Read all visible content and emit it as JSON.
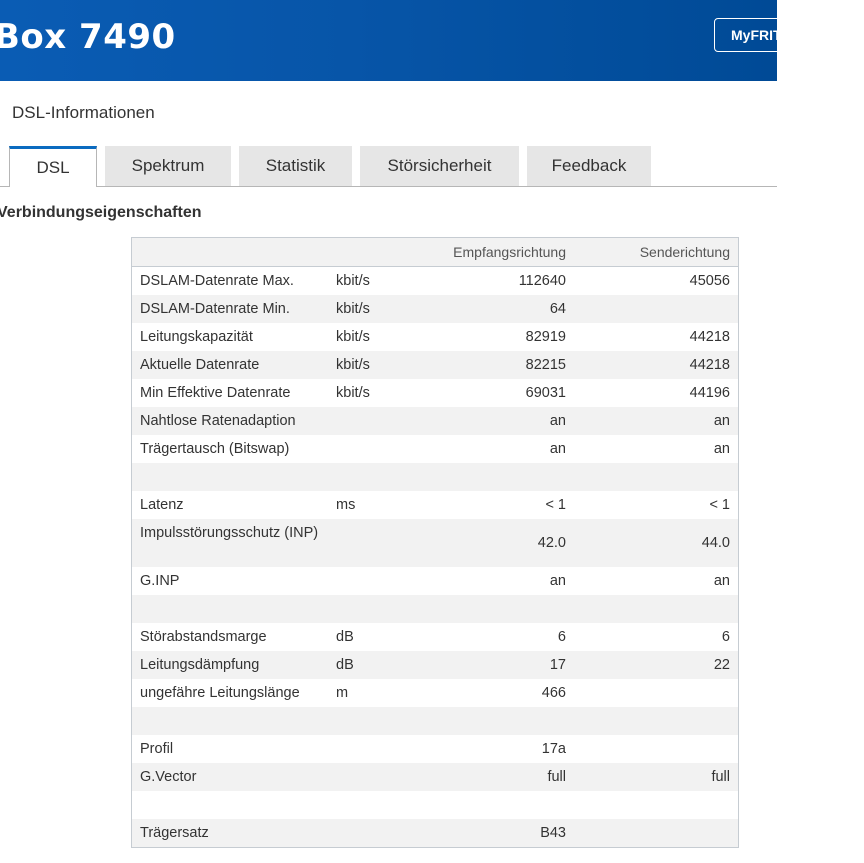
{
  "header": {
    "title": "Box 7490",
    "myfritz_label": "MyFRITZ!"
  },
  "breadcrumb": "DSL-Informationen",
  "tabs": [
    "DSL",
    "Spektrum",
    "Statistik",
    "Störsicherheit",
    "Feedback"
  ],
  "active_tab": "DSL",
  "section_title": "Verbindungseigenschaften",
  "table": {
    "headers": [
      "",
      "",
      "Empfangsrichtung",
      "Senderichtung"
    ],
    "rows": [
      [
        "DSLAM-Datenrate Max.",
        "kbit/s",
        "112640",
        "45056"
      ],
      [
        "DSLAM-Datenrate Min.",
        "kbit/s",
        "64",
        ""
      ],
      [
        "Leitungskapazität",
        "kbit/s",
        "82919",
        "44218"
      ],
      [
        "Aktuelle Datenrate",
        "kbit/s",
        "82215",
        "44218"
      ],
      [
        "Min Effektive Datenrate",
        "kbit/s",
        "69031",
        "44196"
      ],
      [
        "Nahtlose Ratenadaption",
        "",
        "an",
        "an"
      ],
      [
        "Trägertausch (Bitswap)",
        "",
        "an",
        "an"
      ],
      [
        "",
        "",
        "",
        ""
      ],
      [
        "Latenz",
        "ms",
        "< 1",
        "< 1"
      ],
      [
        "Impulsstörungsschutz (INP)",
        "",
        "42.0",
        "44.0"
      ],
      [
        "G.INP",
        "",
        "an",
        "an"
      ],
      [
        "",
        "",
        "",
        ""
      ],
      [
        "Störabstandsmarge",
        "dB",
        "6",
        "6"
      ],
      [
        "Leitungsdämpfung",
        "dB",
        "17",
        "22"
      ],
      [
        "ungefähre Leitungslänge",
        "m",
        "466",
        ""
      ],
      [
        "",
        "",
        "",
        ""
      ],
      [
        "Profil",
        "",
        "17a",
        ""
      ],
      [
        "G.Vector",
        "",
        "full",
        "full"
      ],
      [
        "",
        "",
        "",
        ""
      ],
      [
        "Trägersatz",
        "",
        "B43",
        ""
      ]
    ]
  }
}
